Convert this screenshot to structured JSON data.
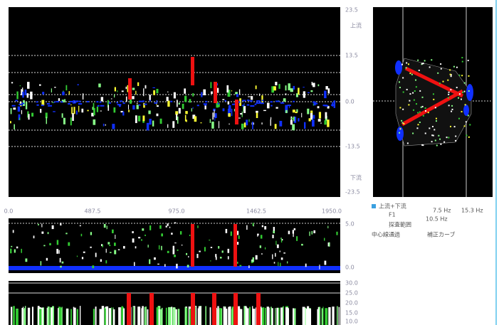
{
  "main_plot": {
    "y_labels": [
      "23.5",
      "上流",
      "13.5",
      "0.0",
      "-13.5",
      "下流",
      "-23.5"
    ]
  },
  "x_axis": {
    "labels": [
      "0.0",
      "487.5",
      "975.0",
      "1462.5",
      "1950.0"
    ]
  },
  "lower_plot": {
    "y_labels": [
      "5.0",
      "0.0"
    ]
  },
  "bottom_plot": {
    "y_labels": [
      "30.0",
      "25.0",
      "20.0",
      "15.0",
      "10.0"
    ]
  },
  "legend": {
    "items": [
      "上流+下流",
      "F1",
      "7.5 Hz",
      "15.3 Hz",
      "10.5 Hz",
      "探査範囲",
      "中心線通過",
      "補正カーブ"
    ]
  }
}
